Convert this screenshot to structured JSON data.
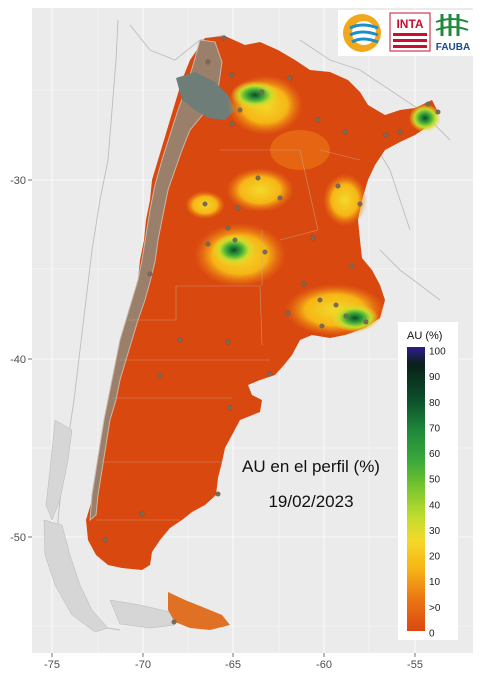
{
  "map": {
    "title": "AU en el perfil (%)",
    "date": "19/02/2023",
    "x_ticks": [
      "-75",
      "-70",
      "-65",
      "-60",
      "-55"
    ],
    "y_ticks": [
      "-30",
      "-40",
      "-50"
    ],
    "colors": {
      "panel": "#ebebeb",
      "grid": "#ffffff",
      "neighbor_border": "#bdbdbd",
      "dry": "#d9480f",
      "orange": "#ec7a14",
      "yellow": "#f3d92a",
      "lime": "#a8d82d",
      "green": "#3aa83a",
      "dark_green": "#0b4d2a",
      "andes": "#9a7f6a",
      "ocean_islands": "#d9d9d9"
    }
  },
  "legend": {
    "title": "AU (%)",
    "labels": [
      "100",
      "90",
      "80",
      "70",
      "60",
      "50",
      "40",
      "30",
      "20",
      "10",
      ">0",
      "0"
    ],
    "colors": [
      "#2d1d8f",
      "#0a1f1a",
      "#0b4d2a",
      "#1f8a3b",
      "#3aa83a",
      "#7cc72d",
      "#c2dd2e",
      "#f3d92a",
      "#f6b516",
      "#ec7a14",
      "#d9480f",
      "#d9480f"
    ]
  },
  "logos": {
    "inta": "INTA",
    "fauba": "FAUBA"
  }
}
